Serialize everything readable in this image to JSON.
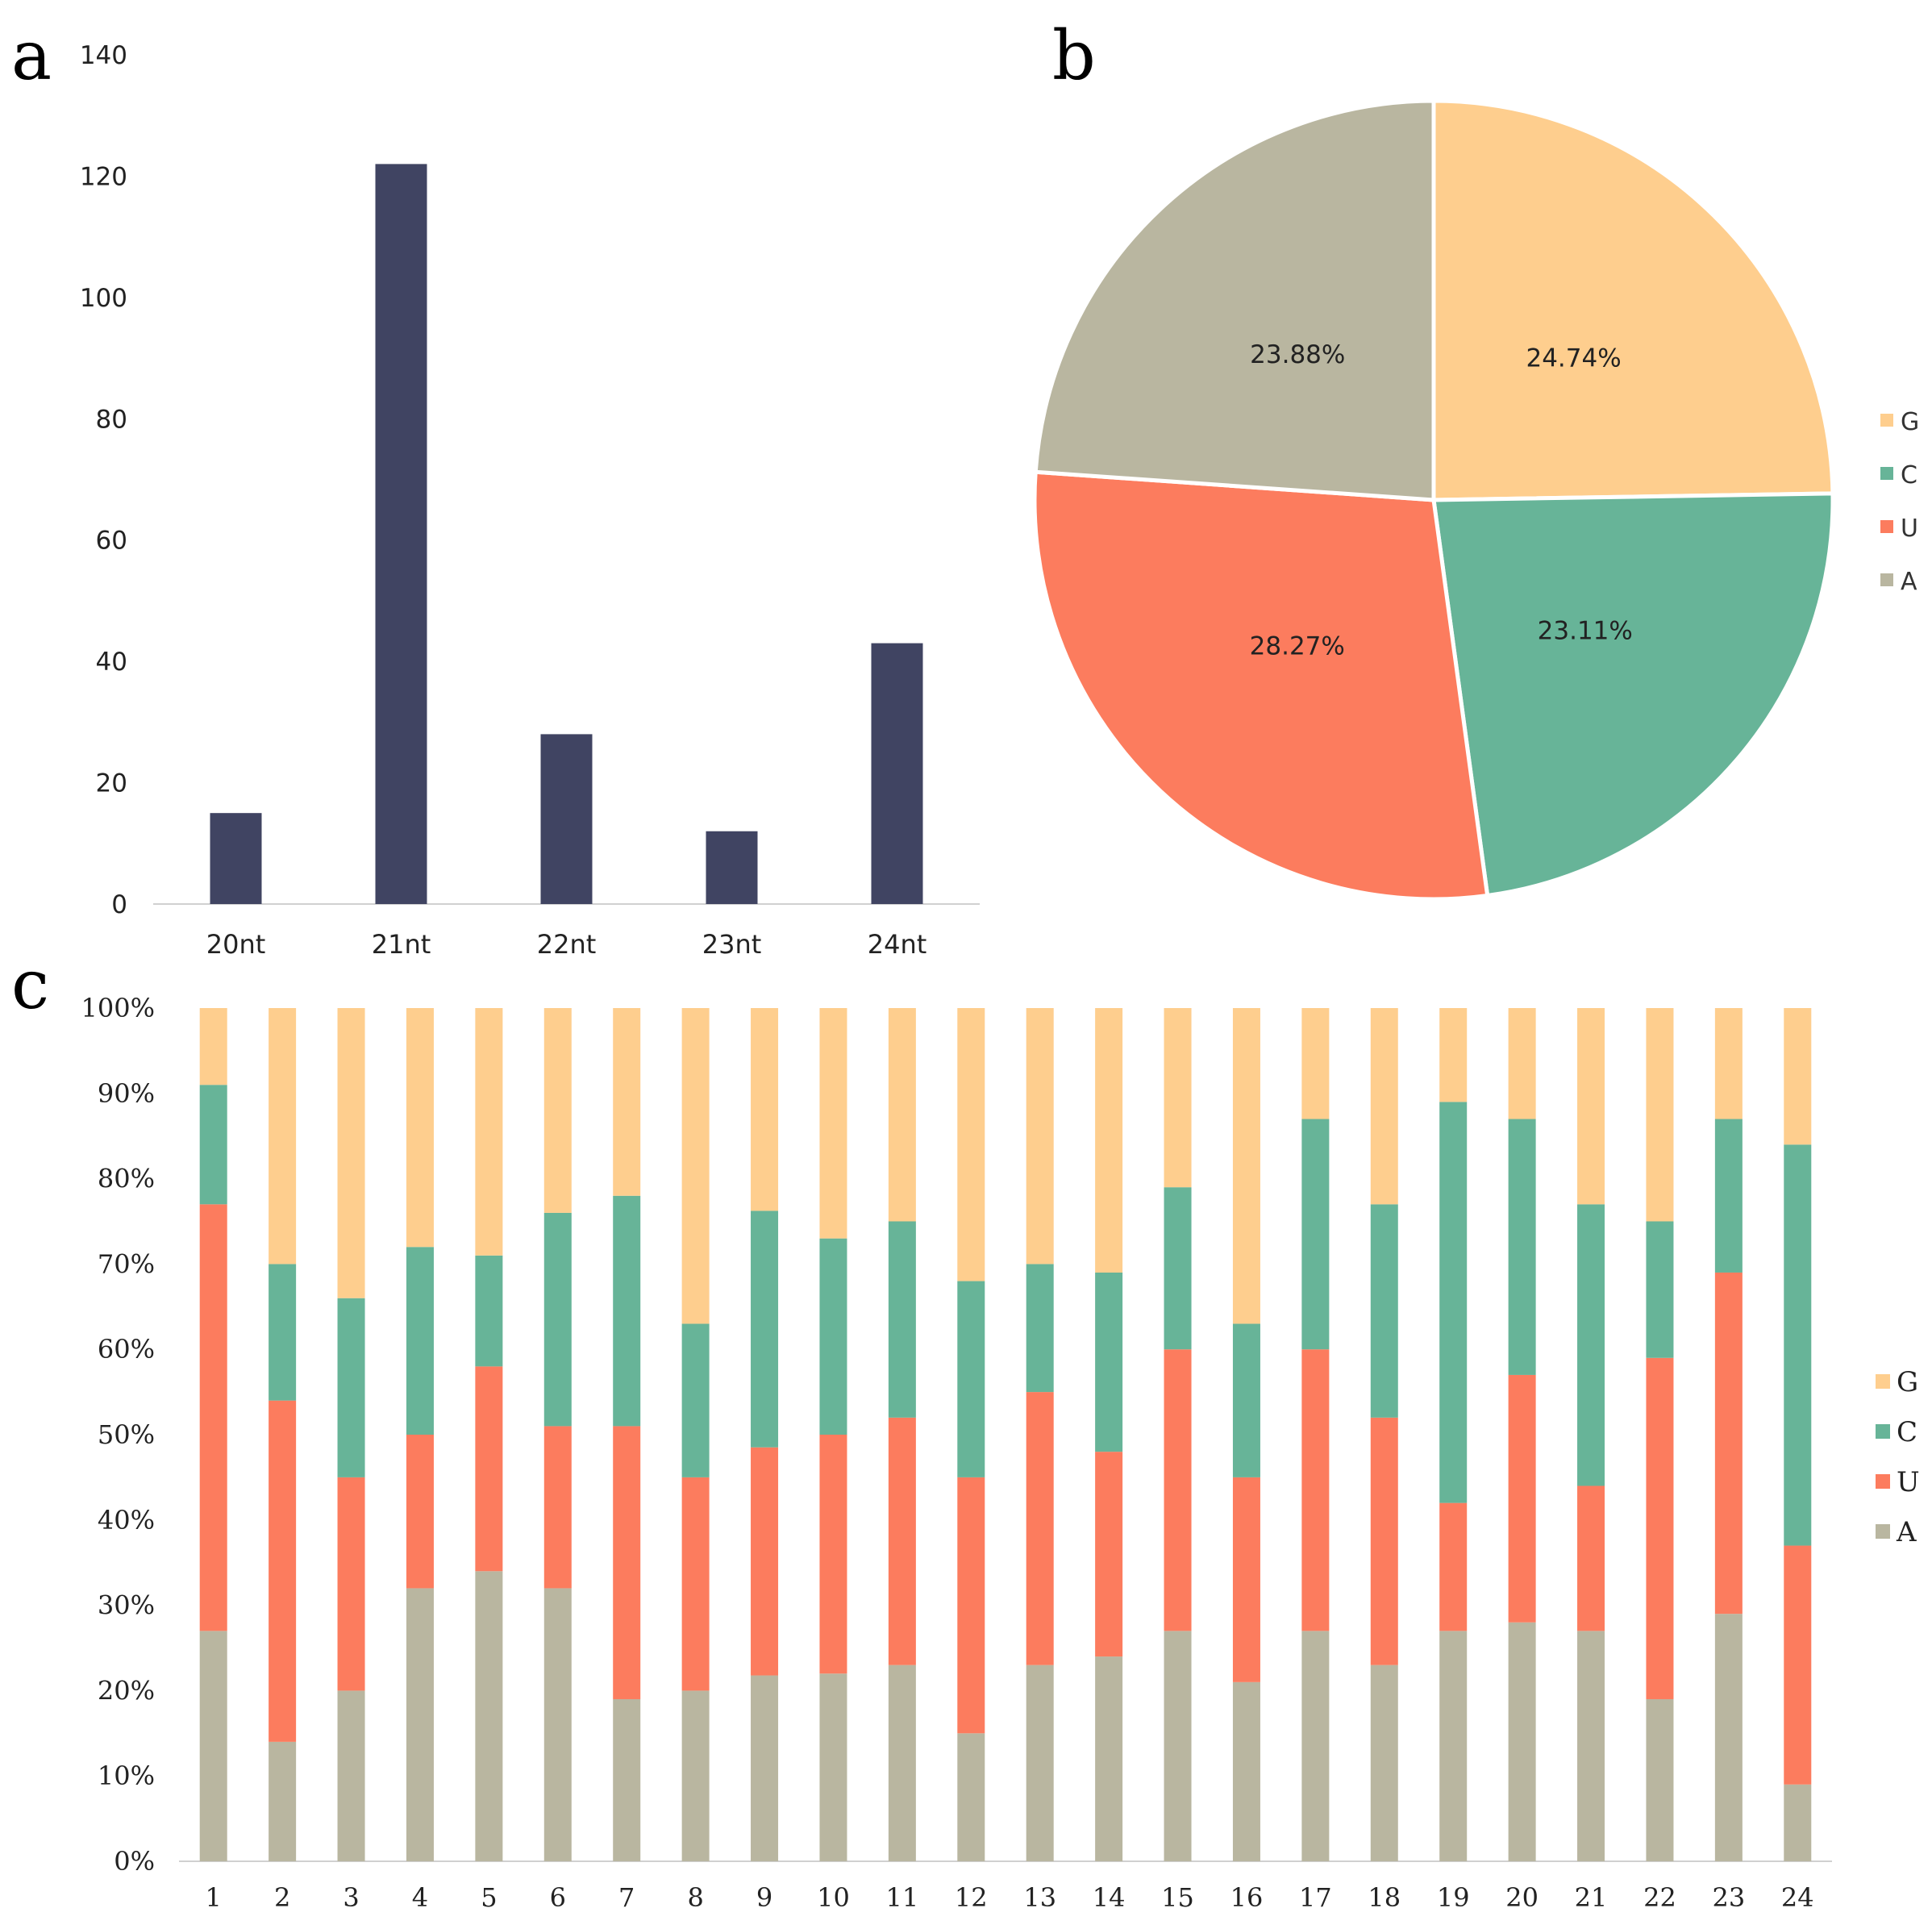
{
  "panels": {
    "a": "a",
    "b": "b",
    "c": "c"
  },
  "chart_data": [
    {
      "id": "a",
      "type": "bar",
      "title": "",
      "xlabel": "",
      "ylabel": "",
      "categories": [
        "20nt",
        "21nt",
        "22nt",
        "23nt",
        "24nt"
      ],
      "values": [
        15,
        122,
        28,
        12,
        43
      ],
      "ylim": [
        0,
        140
      ],
      "yticks": [
        "0",
        "20",
        "40",
        "60",
        "80",
        "100",
        "120",
        "140"
      ],
      "colors": {
        "bar": "#404462"
      },
      "grid": false
    },
    {
      "id": "b",
      "type": "pie",
      "title": "",
      "slices": [
        {
          "name": "G",
          "value": 24.74,
          "label": "24.74%",
          "color": "#FECE8E"
        },
        {
          "name": "C",
          "value": 23.11,
          "label": "23.11%",
          "color": "#67B498"
        },
        {
          "name": "U",
          "value": 28.27,
          "label": "28.27%",
          "color": "#FC7C5E"
        },
        {
          "name": "A",
          "value": 23.88,
          "label": "23.88%",
          "color": "#B9B6A0"
        }
      ],
      "legend": [
        "G",
        "C",
        "U",
        "A"
      ],
      "legend_position": "right"
    },
    {
      "id": "c",
      "type": "bar",
      "stacked": true,
      "percent": true,
      "title": "",
      "xlabel": "",
      "ylabel": "",
      "categories": [
        "1",
        "2",
        "3",
        "4",
        "5",
        "6",
        "7",
        "8",
        "9",
        "10",
        "11",
        "12",
        "13",
        "14",
        "15",
        "16",
        "17",
        "18",
        "19",
        "20",
        "21",
        "22",
        "23",
        "24"
      ],
      "ylim": [
        0,
        100
      ],
      "yticks": [
        "0%",
        "10%",
        "20%",
        "30%",
        "40%",
        "50%",
        "60%",
        "70%",
        "80%",
        "90%",
        "100%"
      ],
      "series": [
        {
          "name": "A",
          "color": "#B9B6A0",
          "values": [
            27,
            14,
            20,
            32,
            34,
            32,
            19,
            20,
            22,
            22,
            23,
            15,
            23,
            24,
            27,
            21,
            27,
            23,
            27,
            28,
            27,
            19,
            29,
            9
          ]
        },
        {
          "name": "U",
          "color": "#FC7C5E",
          "values": [
            50,
            40,
            25,
            18,
            24,
            19,
            32,
            25,
            27,
            28,
            29,
            30,
            32,
            24,
            33,
            24,
            33,
            29,
            15,
            29,
            17,
            40,
            40,
            28
          ]
        },
        {
          "name": "C",
          "color": "#67B498",
          "values": [
            14,
            16,
            21,
            22,
            13,
            25,
            27,
            18,
            28,
            23,
            23,
            23,
            15,
            21,
            19,
            18,
            27,
            25,
            47,
            30,
            33,
            16,
            18,
            47
          ]
        },
        {
          "name": "G",
          "color": "#FECE8E",
          "values": [
            9,
            30,
            34,
            28,
            29,
            24,
            22,
            37,
            24,
            27,
            25,
            32,
            30,
            31,
            21,
            37,
            13,
            23,
            11,
            13,
            23,
            25,
            13,
            16
          ]
        }
      ],
      "legend": [
        "G",
        "C",
        "U",
        "A"
      ],
      "legend_position": "right",
      "grid": false
    }
  ]
}
